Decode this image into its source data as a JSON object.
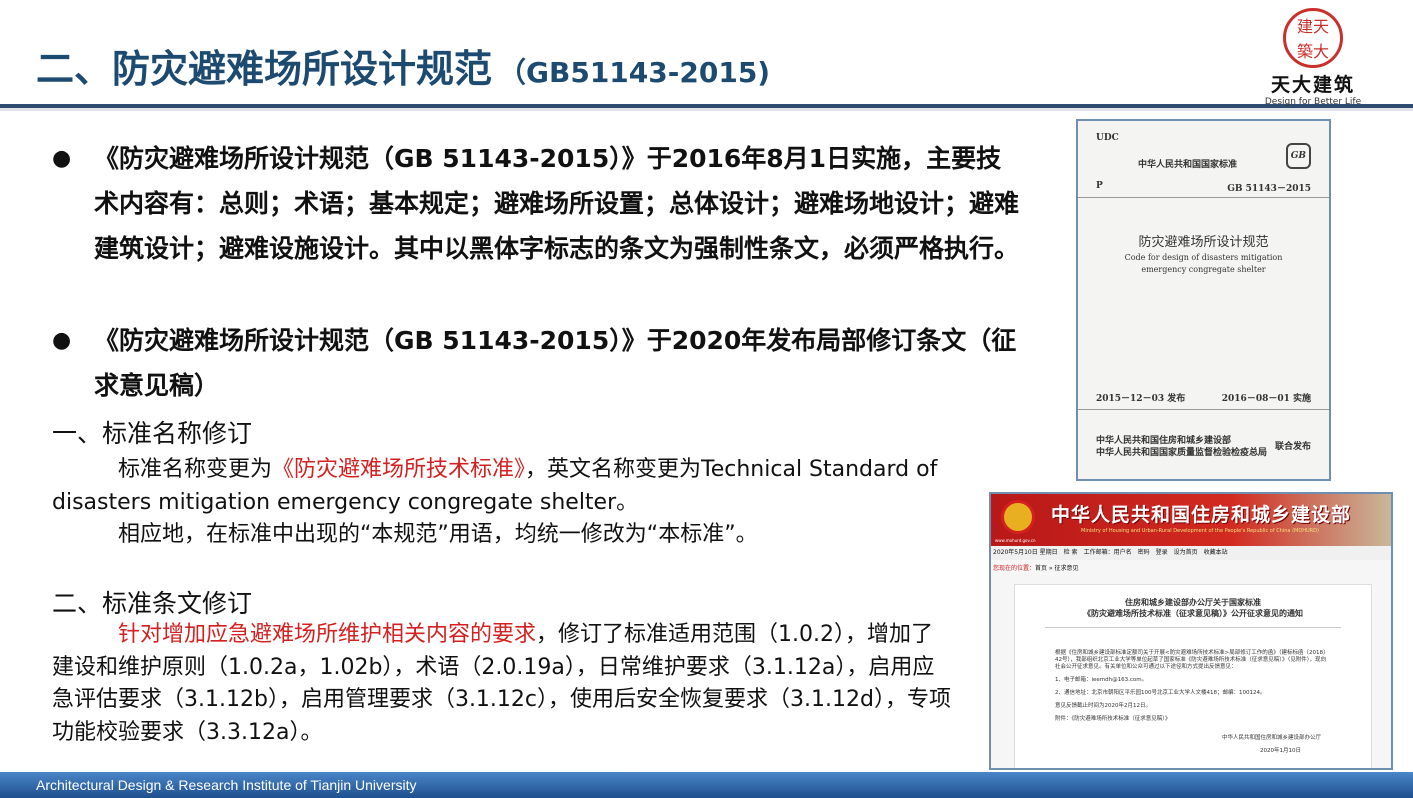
{
  "header": {
    "title": "二、防灾避难场所设计规范",
    "title_code": "（GB51143-2015)",
    "logo": {
      "seal_text": "天大建筑",
      "brand": "天大建筑",
      "tagline": "Design for Better Life"
    }
  },
  "bullets": [
    {
      "symbol": "●",
      "text": "《防灾避难场所设计规范（GB 51143-2015）》于2016年8月1日实施，主要技术内容有：总则；术语；基本规定；避难场所设置；总体设计；避难场地设计；避难建筑设计；避难设施设计。其中以黑体字标志的条文为强制性条文，必须严格执行。"
    },
    {
      "symbol": "●",
      "text": "《防灾避难场所设计规范（GB 51143-2015）》于2020年发布局部修订条文（征求意见稿）"
    }
  ],
  "section1": {
    "heading": "一、标准名称修订",
    "p1_pre": "标准名称变更为",
    "p1_red": "《防灾避难场所技术标准》",
    "p1_post": "，英文名称变更为Technical Standard of disasters mitigation emergency congregate shelter。",
    "p2": "相应地，在标准中出现的“本规范”用语，均统一修改为“本标准”。"
  },
  "section2": {
    "heading": "二、标准条文修订",
    "p_red": "针对增加应急避难场所维护相关内容的要求",
    "p_post": "，修订了标准适用范围（1.0.2），增加了建设和维护原则（1.0.2a，1.02b），术语（2.0.19a），日常维护要求（3.1.12a），启用应急评估要求（3.1.12b），启用管理要求（3.1.12c），使用后安全恢复要求（3.1.12d），专项功能校验要求（3.3.12a）。"
  },
  "book": {
    "udc": "UDC",
    "national": "中华人民共和国国家标准",
    "gb_logo": "GB",
    "p": "P",
    "code": "GB 51143－2015",
    "title_cn": "防灾避难场所设计规范",
    "title_en1": "Code for design of disasters mitigation",
    "title_en2": "emergency congregate shelter",
    "issued": "2015－12－03  发布",
    "effective": "2016－08－01  实施",
    "issuer1": "中华人民共和国住房和城乡建设部",
    "issuer2": "中华人民共和国国家质量监督检验检疫总局",
    "joint": "联合发布"
  },
  "website": {
    "banner_title": "中华人民共和国住房和城乡建设部",
    "banner_sub": "Ministry of Housing and Urban-Rural Development of the People's Republic of China (MOHURD)",
    "url": "www.mohurd.gov.cn",
    "nav": [
      "2020年5月10日 星期日",
      "检 索",
      "工作邮箱：用户名",
      "密码",
      "登录",
      "设为首页",
      "收藏本站"
    ],
    "crumb_label": "您现在的位置：",
    "crumb": "首页 » 征求意见",
    "notice_title1": "住房和城乡建设部办公厅关于国家标准",
    "notice_title2": "《防灾避难场所技术标准（征求意见稿）》公开征求意见的通知",
    "body": [
      "根据《住房和城乡建设部标准定额司关于开展<防灾避难场所技术标准>局部修订工作的函》（建标标函〔2018〕42号），我部组织北京工业大学等单位起草了国家标准《防灾避难场所技术标准（征求意见稿）》（见附件），现向社会公开征求意见。有关单位和公众可通过以下途径和方式提出反馈意见：",
      "1、电子邮箱：ieemdh@163.com。",
      "2、通信地址：北京市朝阳区平乐园100号北京工业大学人文楼418；邮编：100124。",
      "意见反馈截止时间为2020年2月12日。",
      "附件：《防灾避难场所技术标准（征求意见稿）》"
    ],
    "signer": "中华人民共和国住房和城乡建设部办公厅",
    "date": "2020年1月10日"
  },
  "footer": {
    "text": "Architectural Design & Research Institute of Tianjin University"
  },
  "colors": {
    "title": "#1c4a70",
    "highlight": "#d42020",
    "footer": "#2f63a8"
  }
}
